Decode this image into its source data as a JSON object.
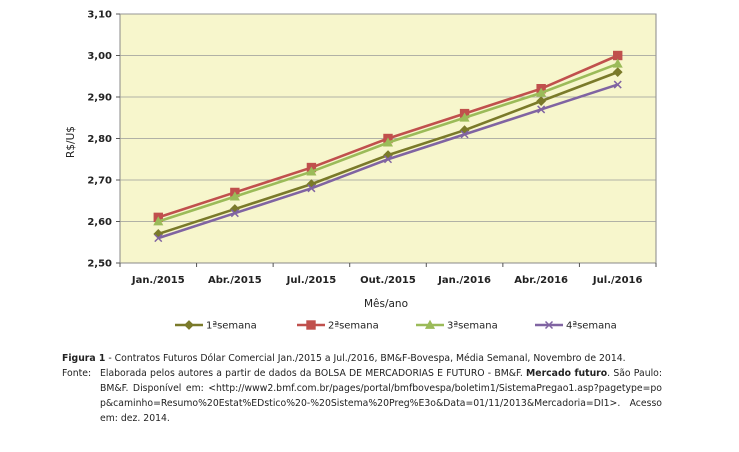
{
  "chart_data": {
    "type": "line",
    "categories": [
      "Jan./2015",
      "Abr./2015",
      "Jul./2015",
      "Out./2015",
      "Jan./2016",
      "Abr./2016",
      "Jul./2016"
    ],
    "ylabel": "R$/U$",
    "xlabel": "Mês/ano",
    "ylim": [
      2.5,
      3.1
    ],
    "yticks": [
      "2,50",
      "2,60",
      "2,70",
      "2,80",
      "2,90",
      "3,00",
      "3,10"
    ],
    "grid": true,
    "legend_position": "bottom",
    "series": [
      {
        "name": "1ªsemana",
        "color": "#7a7a2a",
        "marker": "diamond",
        "values": [
          2.57,
          2.63,
          2.69,
          2.76,
          2.82,
          2.89,
          2.96
        ]
      },
      {
        "name": "2ªsemana",
        "color": "#c0504d",
        "marker": "square",
        "values": [
          2.61,
          2.67,
          2.73,
          2.8,
          2.86,
          2.92,
          3.0
        ]
      },
      {
        "name": "3ªsemana",
        "color": "#9bbb59",
        "marker": "triangle",
        "values": [
          2.6,
          2.66,
          2.72,
          2.79,
          2.85,
          2.91,
          2.98
        ]
      },
      {
        "name": "4ªsemana",
        "color": "#8064a2",
        "marker": "x",
        "values": [
          2.56,
          2.62,
          2.68,
          2.75,
          2.81,
          2.87,
          2.93
        ]
      }
    ]
  },
  "caption": {
    "figure_label": "Figura 1",
    "figure_text": " - Contratos Futuros Dólar Comercial Jan./2015 a Jul./2016, BM&F-Bovespa, Média Semanal, Novembro de 2014.",
    "source_label": "Fonte:",
    "source_text_1": "Elaborada pelos autores a partir de dados da BOLSA DE MERCADORIAS E FUTURO - BM&F. ",
    "source_bold": "Mercado futuro",
    "source_text_2": ". São Paulo: BM&F. Disponível em: <http://www2.bmf.com.br/pages/portal/bmfbovespa/boletim1/SistemaPregao1.asp?pagetype=pop&caminho=Resumo%20Estat%EDstico%20-%20Sistema%20Preg%E3o&Data=01/11/2013&Mercadoria=DI1>. Acesso em: dez. 2014."
  }
}
